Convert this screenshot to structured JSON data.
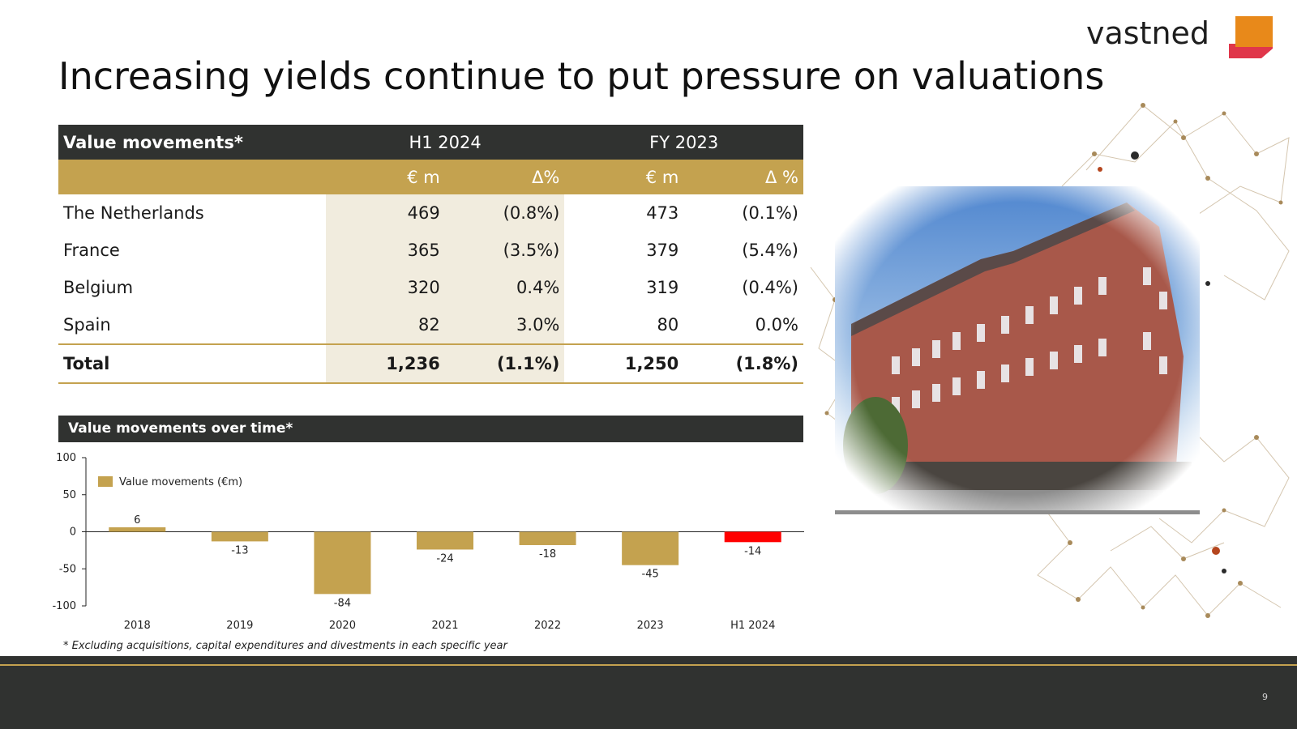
{
  "brand": {
    "name": "vastned",
    "colors": {
      "gold": "#c4a24f",
      "dark": "#303230",
      "orange": "#e8891a",
      "red": "#e0364a",
      "negative_bar": "#ff0000"
    }
  },
  "title": "Increasing yields continue to put pressure on valuations",
  "table": {
    "header": {
      "label": "Value movements*",
      "period1": "H1 2024",
      "period2": "FY 2023"
    },
    "subheader": {
      "col1": "€ m",
      "col2": "Δ%",
      "col3": "€ m",
      "col4": "Δ %"
    },
    "rows": [
      {
        "name": "The Netherlands",
        "v1": "469",
        "d1": "(0.8%)",
        "v2": "473",
        "d2": "(0.1%)"
      },
      {
        "name": "France",
        "v1": "365",
        "d1": "(3.5%)",
        "v2": "379",
        "d2": "(5.4%)"
      },
      {
        "name": "Belgium",
        "v1": "320",
        "d1": "0.4%",
        "v2": "319",
        "d2": "(0.4%)"
      },
      {
        "name": "Spain",
        "v1": "82",
        "d1": "3.0%",
        "v2": "80",
        "d2": "0.0%"
      }
    ],
    "total": {
      "name": "Total",
      "v1": "1,236",
      "d1": "(1.1%)",
      "v2": "1,250",
      "d2": "(1.8%)"
    }
  },
  "chart_header": "Value movements over time*",
  "chart_data": {
    "type": "bar",
    "categories": [
      "2018",
      "2019",
      "2020",
      "2021",
      "2022",
      "2023",
      "H1 2024"
    ],
    "series": [
      {
        "name": "Value movements (€m)",
        "values": [
          6,
          -13,
          -84,
          -24,
          -18,
          -45,
          -14
        ]
      }
    ],
    "data_labels": [
      "6",
      "-13",
      "-84",
      "-24",
      "-18",
      "-45",
      "-14"
    ],
    "y_ticks": [
      "100",
      "50",
      "0",
      "-50",
      "-100"
    ],
    "ylim": [
      -100,
      100
    ],
    "legend_position": "top-left",
    "grid": false,
    "highlight_last_color": "#ff0000",
    "bar_color": "#c4a24f"
  },
  "footnote": "* Excluding acquisitions, capital expenditures and divestments in each specific year",
  "page_number": "9"
}
